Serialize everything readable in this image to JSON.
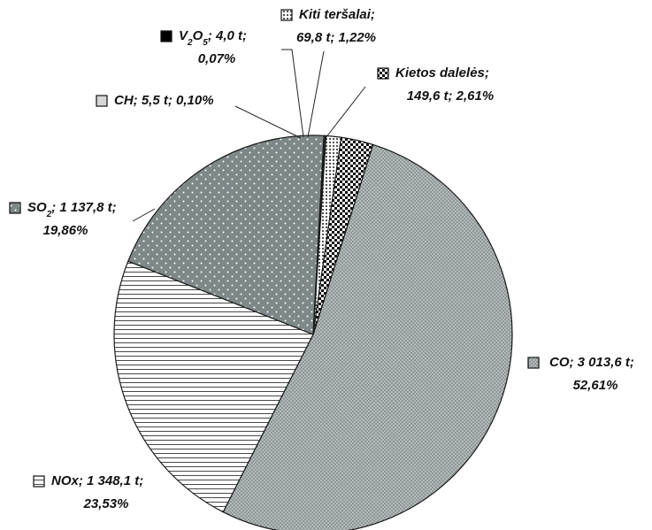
{
  "chart_data": {
    "type": "pie",
    "unit": "t",
    "slices": [
      {
        "id": "co",
        "name": "CO",
        "value_text": "3 013,6 t",
        "value": 3013.6,
        "percent_text": "52,61%",
        "percent": 52.61,
        "pattern": "fine-dots"
      },
      {
        "id": "nox",
        "name": "NOx",
        "value_text": "1 348,1 t",
        "value": 1348.1,
        "percent_text": "23,53%",
        "percent": 23.53,
        "pattern": "horizontal-lines"
      },
      {
        "id": "so2",
        "name": "SO",
        "sub": "2",
        "value_text": "1 137,8 t",
        "value": 1137.8,
        "percent_text": "19,86%",
        "percent": 19.86,
        "pattern": "sparse-dots-gray"
      },
      {
        "id": "ch",
        "name": "CH",
        "value_text": "5,5 t",
        "value": 5.5,
        "percent_text": "0,10%",
        "percent": 0.1,
        "pattern": "light-gray"
      },
      {
        "id": "v2o5",
        "name": "V",
        "sub": "2",
        "name2": "O",
        "sub2": "5",
        "value_text": "4,0 t",
        "value": 4.0,
        "percent_text": "0,07%",
        "percent": 0.07,
        "pattern": "solid-black"
      },
      {
        "id": "kiti",
        "name": "Kiti teršalai",
        "value_text": "69,8 t",
        "value": 69.8,
        "percent_text": "1,22%",
        "percent": 1.22,
        "pattern": "grid-dots"
      },
      {
        "id": "kiet",
        "name": "Kietos dalelės",
        "value_text": "149,6 t",
        "value": 149.6,
        "percent_text": "2,61%",
        "percent": 2.61,
        "pattern": "checker"
      }
    ]
  }
}
